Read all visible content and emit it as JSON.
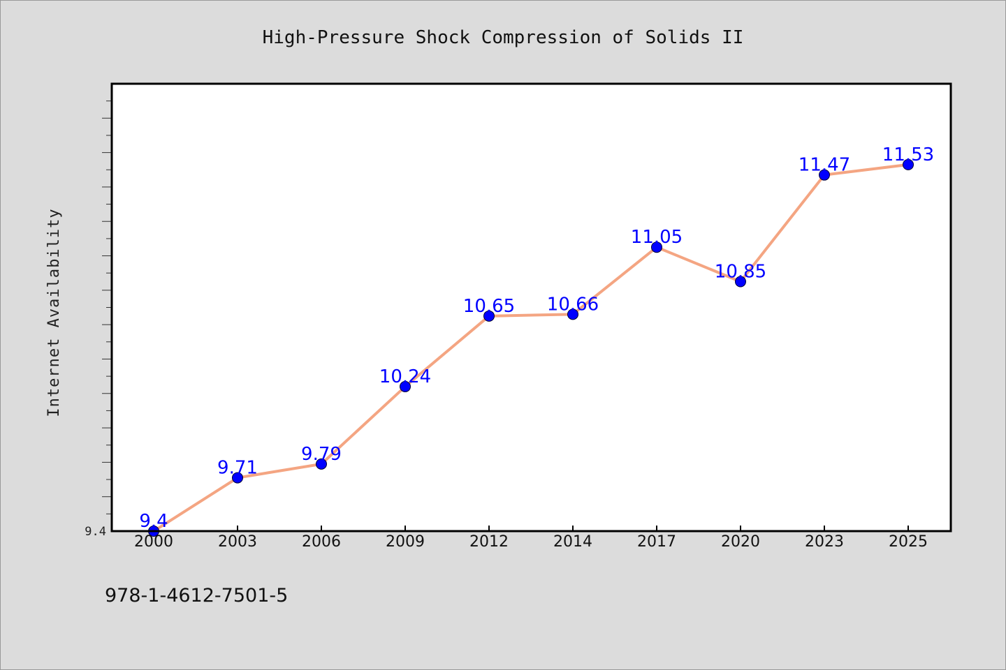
{
  "chart_data": {
    "type": "line",
    "title": "High-Pressure Shock Compression of Solids II",
    "xlabel": "",
    "ylabel": "Internet Availability",
    "categories": [
      "2000",
      "2003",
      "2006",
      "2009",
      "2012",
      "2014",
      "2017",
      "2020",
      "2023",
      "2025"
    ],
    "series": [
      {
        "values": [
          9.4,
          9.71,
          9.79,
          10.24,
          10.65,
          10.66,
          11.05,
          10.85,
          11.47,
          11.53
        ],
        "labels": [
          "9.4",
          "9.71",
          "9.79",
          "10.24",
          "10.65",
          "10.66",
          "11.05",
          "10.85",
          "11.47",
          "11.53"
        ]
      }
    ],
    "ylim": [
      9.4,
      12.0
    ],
    "yticks_labeled": [
      "9.4"
    ],
    "grid": false,
    "legend": "none",
    "colors": {
      "line": "#f4a582",
      "marker": "#0000ff",
      "label": "#0000ff",
      "plot_bg": "#ffffff",
      "page_bg": "#dcdcdc"
    }
  },
  "footer": {
    "isbn": "978-1-4612-7501-5"
  }
}
